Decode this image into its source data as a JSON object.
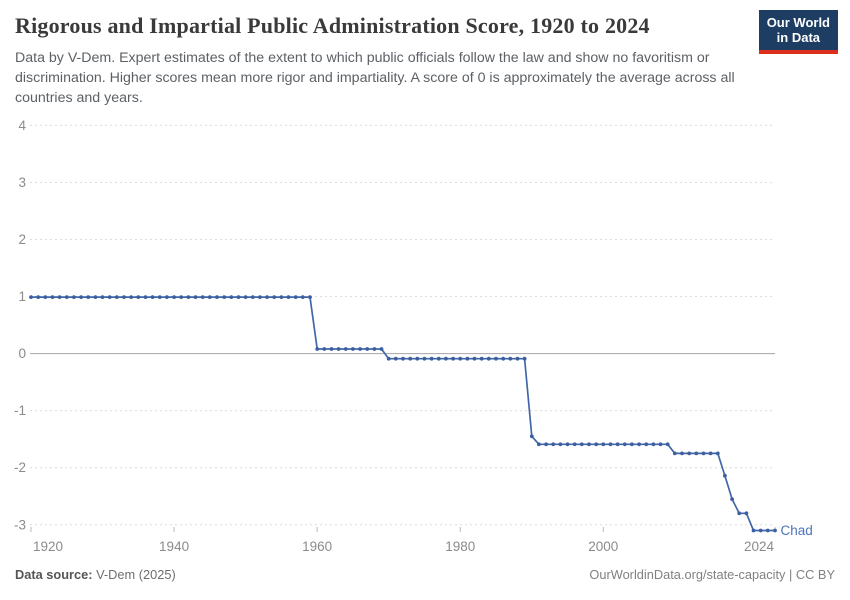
{
  "header": {
    "title": "Rigorous and Impartial Public Administration Score, 1920 to 2024",
    "subtitle": "Data by V-Dem. Expert estimates of the extent to which public officials follow the law and show no favoritism or discrimination. Higher scores mean more rigor and impartiality. A score of 0 is approximately the average across all countries and years.",
    "logo_line1": "Our World",
    "logo_line2": "in Data"
  },
  "chart_data": {
    "type": "line",
    "title": "Rigorous and Impartial Public Administration Score, 1920 to 2024",
    "xlabel": "",
    "ylabel": "",
    "x_domain": [
      1920,
      2024
    ],
    "ylim": [
      -3.5,
      4.1
    ],
    "y_ticks": [
      4,
      3,
      2,
      1,
      0,
      -1,
      -2,
      -3
    ],
    "x_ticks": [
      1920,
      1940,
      1960,
      1980,
      2000,
      2024
    ],
    "grid": "horizontal dashed gridlines, solid zero line",
    "legend": "entity label at line end",
    "series": [
      {
        "name": "Chad",
        "color": "#4267a8",
        "points": [
          [
            1920,
            0.99
          ],
          [
            1921,
            0.99
          ],
          [
            1922,
            0.99
          ],
          [
            1923,
            0.99
          ],
          [
            1924,
            0.99
          ],
          [
            1925,
            0.99
          ],
          [
            1926,
            0.99
          ],
          [
            1927,
            0.99
          ],
          [
            1928,
            0.99
          ],
          [
            1929,
            0.99
          ],
          [
            1930,
            0.99
          ],
          [
            1931,
            0.99
          ],
          [
            1932,
            0.99
          ],
          [
            1933,
            0.99
          ],
          [
            1934,
            0.99
          ],
          [
            1935,
            0.99
          ],
          [
            1936,
            0.99
          ],
          [
            1937,
            0.99
          ],
          [
            1938,
            0.99
          ],
          [
            1939,
            0.99
          ],
          [
            1940,
            0.99
          ],
          [
            1941,
            0.99
          ],
          [
            1942,
            0.99
          ],
          [
            1943,
            0.99
          ],
          [
            1944,
            0.99
          ],
          [
            1945,
            0.99
          ],
          [
            1946,
            0.99
          ],
          [
            1947,
            0.99
          ],
          [
            1948,
            0.99
          ],
          [
            1949,
            0.99
          ],
          [
            1950,
            0.99
          ],
          [
            1951,
            0.99
          ],
          [
            1952,
            0.99
          ],
          [
            1953,
            0.99
          ],
          [
            1954,
            0.99
          ],
          [
            1955,
            0.99
          ],
          [
            1956,
            0.99
          ],
          [
            1957,
            0.99
          ],
          [
            1958,
            0.99
          ],
          [
            1959,
            0.99
          ],
          [
            1960,
            0.08
          ],
          [
            1961,
            0.08
          ],
          [
            1962,
            0.08
          ],
          [
            1963,
            0.08
          ],
          [
            1964,
            0.08
          ],
          [
            1965,
            0.08
          ],
          [
            1966,
            0.08
          ],
          [
            1967,
            0.08
          ],
          [
            1968,
            0.08
          ],
          [
            1969,
            0.08
          ],
          [
            1970,
            -0.09
          ],
          [
            1971,
            -0.09
          ],
          [
            1972,
            -0.09
          ],
          [
            1973,
            -0.09
          ],
          [
            1974,
            -0.09
          ],
          [
            1975,
            -0.09
          ],
          [
            1976,
            -0.09
          ],
          [
            1977,
            -0.09
          ],
          [
            1978,
            -0.09
          ],
          [
            1979,
            -0.09
          ],
          [
            1980,
            -0.09
          ],
          [
            1981,
            -0.09
          ],
          [
            1982,
            -0.09
          ],
          [
            1983,
            -0.09
          ],
          [
            1984,
            -0.09
          ],
          [
            1985,
            -0.09
          ],
          [
            1986,
            -0.09
          ],
          [
            1987,
            -0.09
          ],
          [
            1988,
            -0.09
          ],
          [
            1989,
            -0.09
          ],
          [
            1990,
            -1.45
          ],
          [
            1991,
            -1.59
          ],
          [
            1992,
            -1.59
          ],
          [
            1993,
            -1.59
          ],
          [
            1994,
            -1.59
          ],
          [
            1995,
            -1.59
          ],
          [
            1996,
            -1.59
          ],
          [
            1997,
            -1.59
          ],
          [
            1998,
            -1.59
          ],
          [
            1999,
            -1.59
          ],
          [
            2000,
            -1.59
          ],
          [
            2001,
            -1.59
          ],
          [
            2002,
            -1.59
          ],
          [
            2003,
            -1.59
          ],
          [
            2004,
            -1.59
          ],
          [
            2005,
            -1.59
          ],
          [
            2006,
            -1.59
          ],
          [
            2007,
            -1.59
          ],
          [
            2008,
            -1.59
          ],
          [
            2009,
            -1.59
          ],
          [
            2010,
            -1.75
          ],
          [
            2011,
            -1.75
          ],
          [
            2012,
            -1.75
          ],
          [
            2013,
            -1.75
          ],
          [
            2014,
            -1.75
          ],
          [
            2015,
            -1.75
          ],
          [
            2016,
            -1.75
          ],
          [
            2017,
            -2.14
          ],
          [
            2018,
            -2.55
          ],
          [
            2019,
            -2.8
          ],
          [
            2020,
            -2.8
          ],
          [
            2021,
            -3.1
          ],
          [
            2022,
            -3.1
          ],
          [
            2023,
            -3.1
          ],
          [
            2024,
            -3.1
          ]
        ]
      }
    ]
  },
  "footer": {
    "source_label": "Data source:",
    "source_value": "V-Dem (2025)",
    "credit": "OurWorldinData.org/state-capacity | CC BY"
  },
  "colors": {
    "line": "#4267a8",
    "dot": "#3c5fa0",
    "entity_label": "#4d74ba",
    "grid": "#dcdcdc",
    "zero_line": "#a4a4a4",
    "tick_mark": "#b8b8b8",
    "axis_text": "#8b8b8b",
    "title_text": "#3a3a3a",
    "subtitle_text": "#5c6166",
    "logo_bg": "#1d3d63",
    "logo_red": "#dc2f1e"
  }
}
